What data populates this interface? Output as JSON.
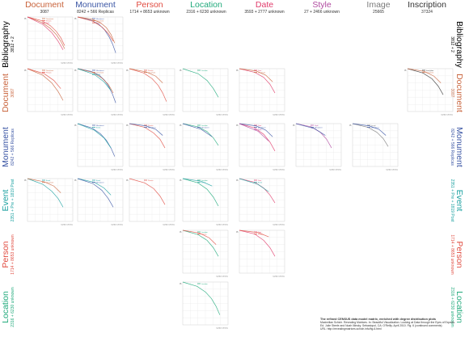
{
  "colors": {
    "Document": "#c8623a",
    "Monument": "#3a55a4",
    "Person": "#e04a3f",
    "Location": "#1fa97a",
    "Date": "#e03a6a",
    "Style": "#b04aa0",
    "Image": "#7a7a7a",
    "Inscription": "#333333",
    "Event": "#1aa0a0"
  },
  "columns": [
    {
      "key": "Document",
      "title": "Document",
      "sub": "3087"
    },
    {
      "key": "Monument",
      "title": "Monument",
      "sub": "8242 + 566 Replicas"
    },
    {
      "key": "Person",
      "title": "Person",
      "sub": "1714 + 8653 unknown"
    },
    {
      "key": "Location",
      "title": "Location",
      "sub": "2316 + 6230 unknown"
    },
    {
      "key": "Date",
      "title": "Date",
      "sub": "3593 + 2777 unknown"
    },
    {
      "key": "Style",
      "title": "Style",
      "sub": "27 + 2466 unknown"
    },
    {
      "key": "Image",
      "title": "Image",
      "sub": "25665"
    },
    {
      "key": "Inscription",
      "title": "Inscription",
      "sub": "37324"
    }
  ],
  "rows_left": [
    {
      "key": "Bibliography",
      "title": "Bibliography",
      "sub": "3812 + 2"
    },
    {
      "key": "Document",
      "title": "Document",
      "sub": "3087"
    },
    {
      "key": "Monument",
      "title": "Monument",
      "sub": "8242 + 566 Replicas"
    },
    {
      "key": "Event",
      "title": "Event",
      "sub": "2351 + Pre + 1819 Post"
    },
    {
      "key": "Person",
      "title": "Person",
      "sub": "1714 + 8653 unknown"
    },
    {
      "key": "Location",
      "title": "Location",
      "sub": "2316 + 6230 unknown"
    }
  ],
  "rows_right": [
    {
      "key": "Bibliography",
      "title": "Bibliography",
      "sub": "3812 + 2"
    },
    {
      "key": "Document",
      "title": "Document",
      "sub": "3087"
    },
    {
      "key": "Monument",
      "title": "Monument",
      "sub": "8242 + 566 Replicas"
    },
    {
      "key": "Event",
      "title": "Event",
      "sub": "2351 + Pre + 1819 Post"
    },
    {
      "key": "Person",
      "title": "Person",
      "sub": "1714 + 8653 unknown"
    },
    {
      "key": "Location",
      "title": "Location",
      "sub": "2316 + 6230 unknown"
    }
  ],
  "axes": {
    "x_label": "number of links",
    "y_label": "Pₗ"
  },
  "chart_data": {
    "type": "line",
    "title": "The refined CENSUS data model matrix, enriched with degree distribution plots",
    "x_scale": "log",
    "y_scale": "log",
    "grid": true,
    "panels": [
      {
        "row": "Bibliography",
        "col": "Document",
        "series": [
          {
            "color": "Document",
            "values": [
              1,
              0.42,
              0.16,
              0.06,
              0.02,
              0.006
            ]
          },
          {
            "color": "Person",
            "values": [
              1,
              0.55,
              0.25,
              0.1,
              0.035,
              0.01
            ]
          },
          {
            "color": "Date",
            "values": [
              1,
              0.3,
              0.08,
              0.02,
              0.005
            ]
          }
        ]
      },
      {
        "row": "Bibliography",
        "col": "Monument",
        "series": [
          {
            "color": "Monument",
            "values": [
              1,
              0.6,
              0.3,
              0.12,
              0.04,
              0.012,
              0.003
            ]
          },
          {
            "color": "Document",
            "values": [
              1,
              0.7,
              0.4,
              0.18,
              0.06,
              0.015
            ]
          },
          {
            "color": "Person",
            "values": [
              1,
              0.5,
              0.2,
              0.07,
              0.02
            ]
          }
        ]
      },
      {
        "row": "Document",
        "col": "Document",
        "series": [
          {
            "color": "Document",
            "values": [
              1,
              0.35,
              0.1,
              0.025,
              0.006
            ]
          },
          {
            "color": "Person",
            "values": [
              1,
              0.45,
              0.15,
              0.04
            ]
          }
        ]
      },
      {
        "row": "Document",
        "col": "Monument",
        "series": [
          {
            "color": "Monument",
            "values": [
              1,
              0.65,
              0.35,
              0.15,
              0.05,
              0.015,
              0.004
            ]
          },
          {
            "color": "Document",
            "values": [
              1,
              0.55,
              0.22,
              0.08,
              0.02
            ]
          },
          {
            "color": "Event",
            "values": [
              1,
              0.4,
              0.12,
              0.03
            ]
          }
        ]
      },
      {
        "row": "Document",
        "col": "Person",
        "series": [
          {
            "color": "Person",
            "values": [
              1,
              0.5,
              0.2,
              0.07,
              0.02,
              0.005
            ]
          },
          {
            "color": "Document",
            "values": [
              1,
              0.6,
              0.3,
              0.1
            ]
          }
        ]
      },
      {
        "row": "Document",
        "col": "Location",
        "series": [
          {
            "color": "Location",
            "values": [
              1,
              0.45,
              0.15,
              0.04,
              0.01
            ]
          }
        ]
      },
      {
        "row": "Document",
        "col": "Date",
        "series": [
          {
            "color": "Date",
            "values": [
              1,
              0.55,
              0.25,
              0.08,
              0.02
            ]
          },
          {
            "color": "Document",
            "values": [
              1,
              0.7,
              0.35,
              0.12
            ]
          }
        ]
      },
      {
        "row": "Document",
        "col": "Inscription",
        "series": [
          {
            "color": "Inscription",
            "values": [
              1,
              0.5,
              0.2,
              0.06,
              0.015
            ]
          },
          {
            "color": "Document",
            "values": [
              1,
              0.65,
              0.3,
              0.1
            ]
          }
        ]
      },
      {
        "row": "Monument",
        "col": "Monument",
        "series": [
          {
            "color": "Monument",
            "values": [
              1,
              0.5,
              0.2,
              0.07,
              0.02,
              0.005
            ]
          },
          {
            "color": "Event",
            "values": [
              1,
              0.35,
              0.1,
              0.02
            ]
          }
        ]
      },
      {
        "row": "Monument",
        "col": "Person",
        "series": [
          {
            "color": "Person",
            "values": [
              1,
              0.55,
              0.22,
              0.08,
              0.02
            ]
          },
          {
            "color": "Monument",
            "values": [
              1,
              0.7,
              0.4,
              0.15
            ]
          }
        ]
      },
      {
        "row": "Monument",
        "col": "Location",
        "series": [
          {
            "color": "Location",
            "values": [
              1,
              0.6,
              0.28,
              0.1,
              0.03
            ]
          },
          {
            "color": "Monument",
            "values": [
              1,
              0.4,
              0.12
            ]
          }
        ]
      },
      {
        "row": "Monument",
        "col": "Date",
        "series": [
          {
            "color": "Date",
            "values": [
              1,
              0.5,
              0.18,
              0.05,
              0.012
            ]
          },
          {
            "color": "Monument",
            "values": [
              1,
              0.7,
              0.35,
              0.12
            ]
          },
          {
            "color": "Style",
            "values": [
              1,
              0.3,
              0.06
            ]
          }
        ]
      },
      {
        "row": "Monument",
        "col": "Style",
        "series": [
          {
            "color": "Style",
            "values": [
              1,
              0.6,
              0.25,
              0.08,
              0.02
            ]
          },
          {
            "color": "Monument",
            "values": [
              1,
              0.45,
              0.15
            ]
          }
        ]
      },
      {
        "row": "Monument",
        "col": "Image",
        "series": [
          {
            "color": "Image",
            "values": [
              1,
              0.55,
              0.25,
              0.09,
              0.025
            ]
          },
          {
            "color": "Monument",
            "values": [
              1,
              0.7,
              0.4,
              0.15
            ]
          }
        ]
      },
      {
        "row": "Event",
        "col": "Document",
        "series": [
          {
            "color": "Event",
            "values": [
              1,
              0.4,
              0.13,
              0.04,
              0.01
            ]
          },
          {
            "color": "Document",
            "values": [
              1,
              0.6,
              0.3,
              0.1
            ]
          }
        ]
      },
      {
        "row": "Event",
        "col": "Monument",
        "series": [
          {
            "color": "Event",
            "values": [
              1,
              0.55,
              0.22,
              0.07
            ]
          },
          {
            "color": "Monument",
            "values": [
              1,
              0.45,
              0.15,
              0.04,
              0.01
            ]
          }
        ]
      },
      {
        "row": "Event",
        "col": "Person",
        "series": [
          {
            "color": "Person",
            "values": [
              1,
              0.5,
              0.2,
              0.06,
              0.015
            ]
          }
        ]
      },
      {
        "row": "Event",
        "col": "Location",
        "series": [
          {
            "color": "Location",
            "values": [
              1,
              0.5,
              0.18,
              0.05,
              0.012
            ]
          },
          {
            "color": "Event",
            "values": [
              1,
              0.65,
              0.3
            ]
          }
        ]
      },
      {
        "row": "Event",
        "col": "Date",
        "series": [
          {
            "color": "Date",
            "values": [
              1,
              0.55,
              0.22,
              0.07,
              0.02
            ]
          },
          {
            "color": "Event",
            "values": [
              1,
              0.4,
              0.12
            ]
          }
        ]
      },
      {
        "row": "Person",
        "col": "Location",
        "series": [
          {
            "color": "Location",
            "values": [
              1,
              0.5,
              0.2,
              0.06,
              0.015
            ]
          },
          {
            "color": "Person",
            "values": [
              1,
              0.65,
              0.3,
              0.1
            ]
          }
        ]
      },
      {
        "row": "Person",
        "col": "Date",
        "series": [
          {
            "color": "Date",
            "values": [
              1,
              0.55,
              0.2,
              0.06,
              0.015
            ]
          },
          {
            "color": "Person",
            "values": [
              1,
              0.7,
              0.35
            ]
          }
        ]
      },
      {
        "row": "Location",
        "col": "Location",
        "series": [
          {
            "color": "Location",
            "values": [
              1,
              0.5,
              0.2,
              0.07,
              0.02,
              0.005
            ]
          }
        ]
      }
    ]
  },
  "credit": {
    "title": "The refined CENSUS data model matrix, enriched with degree distribution plots",
    "line1": "Maximilian Schich. Revealing Matrices. In: Beautiful Visualization. Looking at Data through the Eyes of Experts.",
    "line2": "Ed. Julie Steele and Noah Iliinsky. Sebastopol, CA: O'Reilly. April 2010. Fig. 6 (continued comments)",
    "line3": "URL: http://revealingmatrices.schich.info/fig-6.html"
  }
}
